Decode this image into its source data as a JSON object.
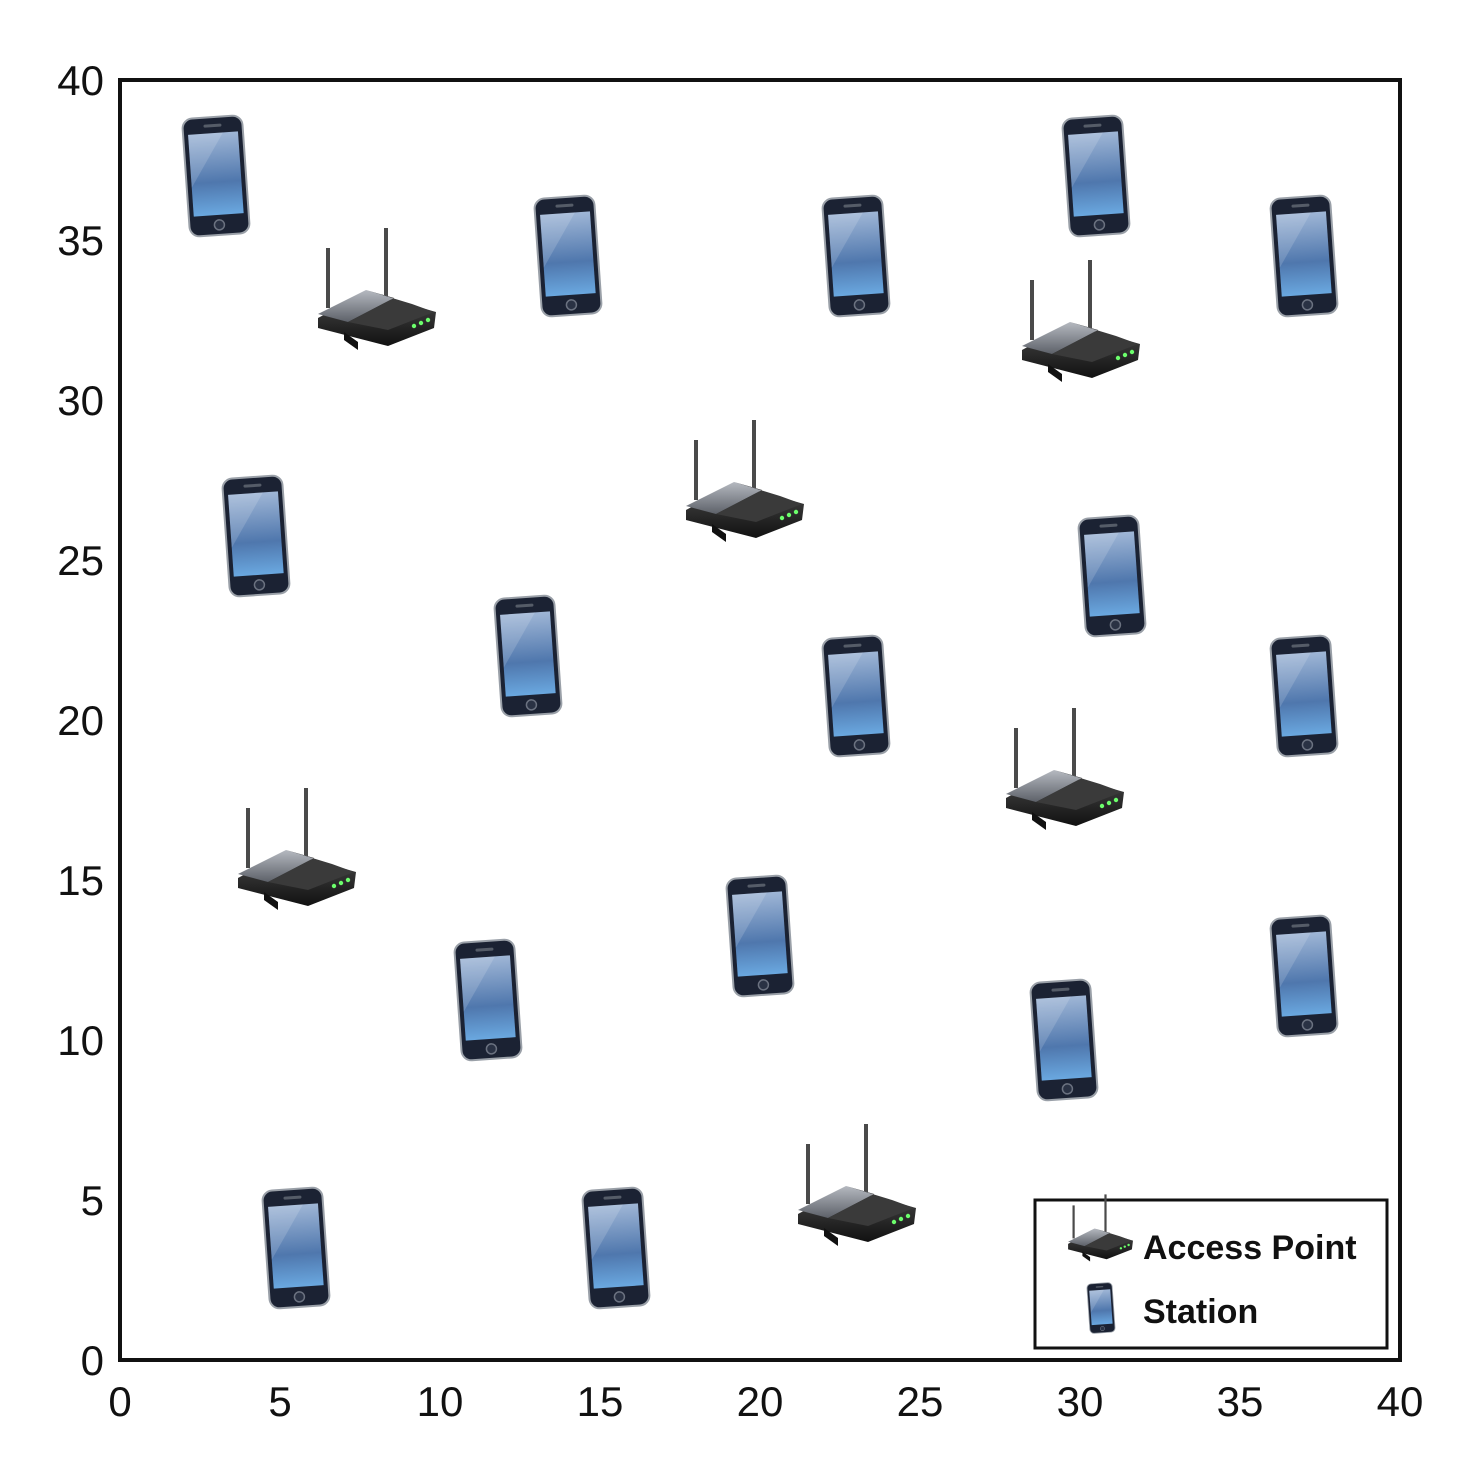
{
  "chart_data": {
    "type": "scatter",
    "title": "",
    "xlabel": "",
    "ylabel": "",
    "xlim": [
      0,
      40
    ],
    "ylim": [
      0,
      40
    ],
    "xticks": [
      "0",
      "5",
      "10",
      "15",
      "20",
      "25",
      "30",
      "35",
      "40"
    ],
    "yticks": [
      "0",
      "5",
      "10",
      "15",
      "20",
      "25",
      "30",
      "35",
      "40"
    ],
    "grid": false,
    "legend_position": "bottom-right",
    "series": [
      {
        "name": "Access Point",
        "icon": "wifi-router-icon",
        "points": [
          {
            "x": 8,
            "y": 32.5
          },
          {
            "x": 30,
            "y": 31.5
          },
          {
            "x": 19.5,
            "y": 26.5
          },
          {
            "x": 5.5,
            "y": 15
          },
          {
            "x": 29.5,
            "y": 17.5
          },
          {
            "x": 23,
            "y": 4.5
          }
        ]
      },
      {
        "name": "Station",
        "icon": "smartphone-icon",
        "points": [
          {
            "x": 3,
            "y": 37
          },
          {
            "x": 14,
            "y": 34.5
          },
          {
            "x": 23,
            "y": 34.5
          },
          {
            "x": 30.5,
            "y": 37
          },
          {
            "x": 37,
            "y": 34.5
          },
          {
            "x": 4.25,
            "y": 25.75
          },
          {
            "x": 12.75,
            "y": 22
          },
          {
            "x": 31,
            "y": 24.5
          },
          {
            "x": 23,
            "y": 20.75
          },
          {
            "x": 37,
            "y": 20.75
          },
          {
            "x": 20,
            "y": 13.25
          },
          {
            "x": 11.5,
            "y": 11.25
          },
          {
            "x": 29.5,
            "y": 10
          },
          {
            "x": 37,
            "y": 12
          },
          {
            "x": 5.5,
            "y": 3.5
          },
          {
            "x": 15.5,
            "y": 3.5
          }
        ]
      }
    ]
  },
  "colors": {
    "axis": "#111111",
    "router_body": "#2b2b2b",
    "router_top": "#8a8f98",
    "router_led": "#6cff6c",
    "phone_frame": "#1b2233",
    "phone_screen": "#6f93c4"
  }
}
